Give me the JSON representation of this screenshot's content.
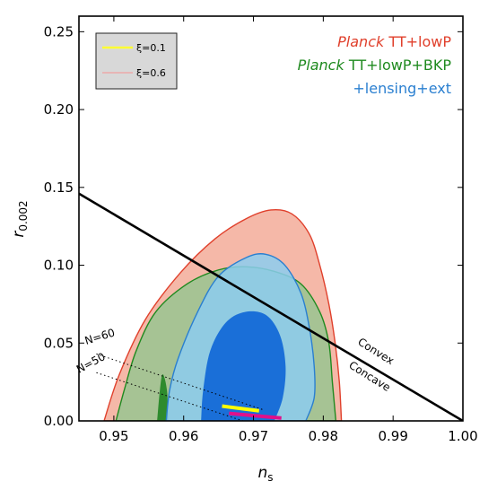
{
  "chart_data": {
    "type": "contour",
    "xlabel": "n",
    "xlabel_sub": "s",
    "ylabel": "r",
    "ylabel_sub": "0.002",
    "xlim": [
      0.945,
      1.0
    ],
    "ylim": [
      0.0,
      0.26
    ],
    "x_ticks": [
      0.95,
      0.96,
      0.97,
      0.98,
      0.99,
      1.0
    ],
    "x_tick_labels": [
      "0.95",
      "0.96",
      "0.97",
      "0.98",
      "0.99",
      "1.00"
    ],
    "y_ticks": [
      0.0,
      0.05,
      0.1,
      0.15,
      0.2,
      0.25
    ],
    "y_tick_labels": [
      "0.00",
      "0.05",
      "0.10",
      "0.15",
      "0.20",
      "0.25"
    ],
    "datasets": [
      {
        "name_italic": "Planck",
        "name_rest": " TT+lowP",
        "color": "#e0402c",
        "fill_outer": "#f5b8a8",
        "outer_contour": [
          [
            0.9486,
            0
          ],
          [
            0.9508,
            0.03
          ],
          [
            0.9545,
            0.065
          ],
          [
            0.9595,
            0.095
          ],
          [
            0.9645,
            0.117
          ],
          [
            0.969,
            0.13
          ],
          [
            0.9725,
            0.1355
          ],
          [
            0.9755,
            0.133
          ],
          [
            0.978,
            0.12
          ],
          [
            0.9795,
            0.1
          ],
          [
            0.9808,
            0.075
          ],
          [
            0.9817,
            0.05
          ],
          [
            0.9823,
            0.025
          ],
          [
            0.9826,
            0
          ]
        ]
      },
      {
        "name_italic": "Planck",
        "name_rest": " TT+lowP+BKP",
        "color": "#1f8a1f",
        "fill_outer": "#98c490",
        "fill_inner": "#2e8b2e",
        "outer_contour": [
          [
            0.9503,
            0
          ],
          [
            0.9515,
            0.02
          ],
          [
            0.9532,
            0.045
          ],
          [
            0.956,
            0.07
          ],
          [
            0.9605,
            0.088
          ],
          [
            0.965,
            0.097
          ],
          [
            0.969,
            0.099
          ],
          [
            0.973,
            0.096
          ],
          [
            0.9768,
            0.088
          ],
          [
            0.9795,
            0.07
          ],
          [
            0.9808,
            0.05
          ],
          [
            0.9813,
            0.025
          ],
          [
            0.9818,
            0
          ]
        ],
        "inner_contour": [
          [
            0.9562,
            0
          ],
          [
            0.9566,
            0.02
          ],
          [
            0.957,
            0.03
          ],
          [
            0.9576,
            0.02
          ],
          [
            0.9578,
            0
          ]
        ]
      },
      {
        "name_italic": "",
        "name_rest": "+lensing+ext",
        "color": "#2a7fd0",
        "fill_outer": "#8ccdf0",
        "fill_inner": "#1a6fd8",
        "outer_contour": [
          [
            0.9575,
            0
          ],
          [
            0.958,
            0.02
          ],
          [
            0.9592,
            0.04
          ],
          [
            0.962,
            0.07
          ],
          [
            0.965,
            0.093
          ],
          [
            0.969,
            0.105
          ],
          [
            0.9718,
            0.107
          ],
          [
            0.9745,
            0.1
          ],
          [
            0.9768,
            0.082
          ],
          [
            0.978,
            0.06
          ],
          [
            0.9787,
            0.035
          ],
          [
            0.9787,
            0.015
          ],
          [
            0.9775,
            0
          ]
        ],
        "inner_contour": [
          [
            0.9625,
            0
          ],
          [
            0.9628,
            0.02
          ],
          [
            0.9638,
            0.045
          ],
          [
            0.966,
            0.063
          ],
          [
            0.9688,
            0.07
          ],
          [
            0.9718,
            0.068
          ],
          [
            0.9738,
            0.055
          ],
          [
            0.9746,
            0.035
          ],
          [
            0.9742,
            0.015
          ],
          [
            0.973,
            0
          ]
        ]
      }
    ],
    "legend_items": [
      {
        "label": "ξ=0.1",
        "color": "#ffff33"
      },
      {
        "label": "ξ=0.6",
        "color": "#f0a0a0"
      }
    ],
    "convex_concave_line": {
      "points": [
        [
          0.945,
          0.146
        ],
        [
          1.0,
          0.0
        ]
      ],
      "color": "#000000",
      "label_above": "Convex",
      "label_below": "Concave"
    },
    "efold_lines": [
      {
        "label": "N=60",
        "points": [
          [
            0.9475,
            0.043
          ],
          [
            0.9715,
            0.007
          ]
        ]
      },
      {
        "label": "N=50",
        "points": [
          [
            0.9475,
            0.031
          ],
          [
            0.9685,
            0.0
          ]
        ]
      }
    ],
    "model_segments": [
      {
        "name": "ξ=0.1",
        "color": "#ffff00",
        "points": [
          [
            0.9655,
            0.0095
          ],
          [
            0.9708,
            0.0065
          ]
        ]
      },
      {
        "name": "ξ=0.6",
        "color": "#e0108a",
        "points": [
          [
            0.9665,
            0.0048
          ],
          [
            0.974,
            0.0018
          ]
        ]
      }
    ]
  }
}
